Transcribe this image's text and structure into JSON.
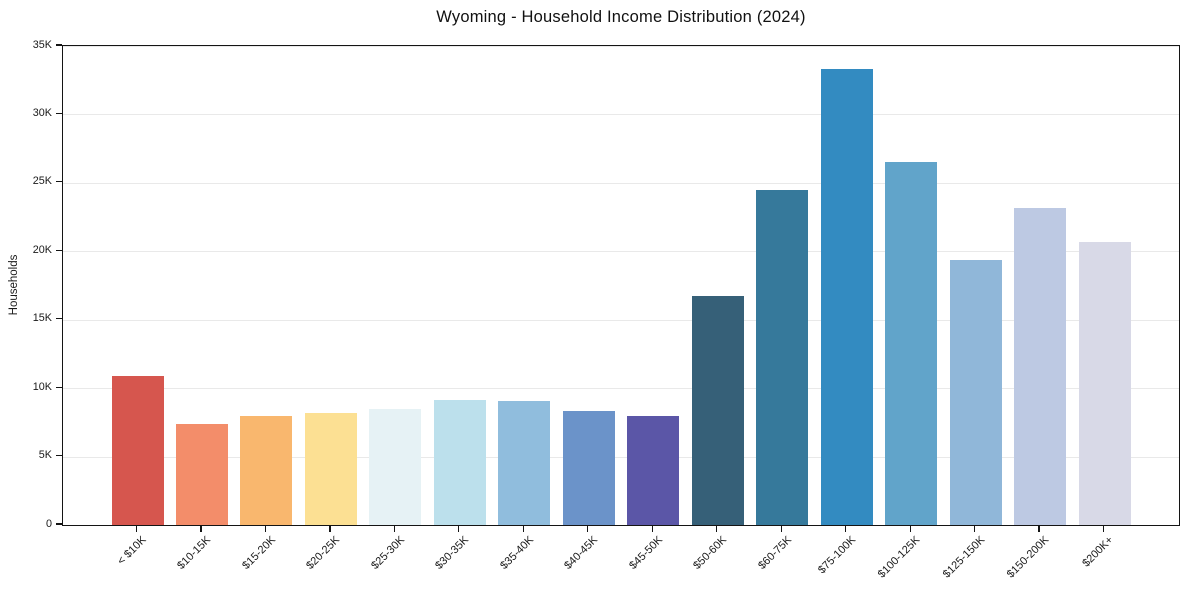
{
  "chart_data": {
    "type": "bar",
    "title": "Wyoming - Household Income Distribution (2024)",
    "xlabel": "",
    "ylabel": "Households",
    "categories": [
      "< $10K",
      "$10-15K",
      "$15-20K",
      "$20-25K",
      "$25-30K",
      "$30-35K",
      "$35-40K",
      "$40-45K",
      "$45-50K",
      "$50-60K",
      "$60-75K",
      "$75-100K",
      "$100-125K",
      "$125-150K",
      "$150-200K",
      "$200K+"
    ],
    "values": [
      10900,
      7400,
      7950,
      8200,
      8500,
      9150,
      9100,
      8350,
      7950,
      16700,
      24450,
      33350,
      26550,
      19350,
      23200,
      20650
    ],
    "bar_colors": [
      "#d6564e",
      "#f38d6a",
      "#f9b76e",
      "#fce093",
      "#e6f2f5",
      "#bce0ec",
      "#90bddd",
      "#6b93c9",
      "#5b56a7",
      "#366078",
      "#36799b",
      "#338bc1",
      "#61a4ca",
      "#90b7d9",
      "#bdc9e3",
      "#d8d9e7"
    ],
    "ylim": [
      0,
      35000
    ],
    "ytick_values": [
      0,
      5000,
      10000,
      15000,
      20000,
      25000,
      30000,
      35000
    ],
    "ytick_labels": [
      "0",
      "5K",
      "10K",
      "15K",
      "20K",
      "25K",
      "30K",
      "35K"
    ],
    "grid": true,
    "legend": false
  },
  "style": {
    "grid_color": "#e9e9e9",
    "spine_color": "#141414",
    "tick_label_color": "#1a1a1a",
    "title_color": "#111111",
    "background": "#ffffff"
  }
}
